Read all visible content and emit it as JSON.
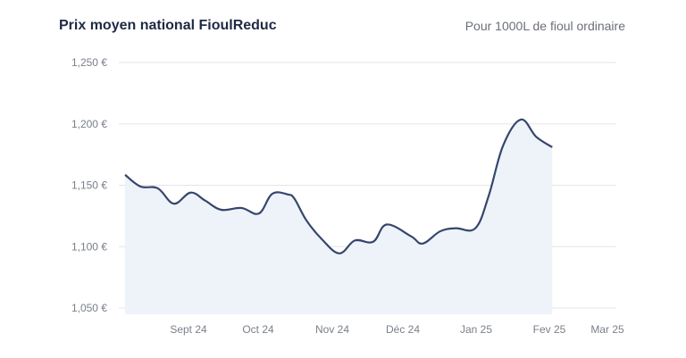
{
  "chart_data": {
    "type": "area",
    "title": "Prix moyen national FioulReduc",
    "subtitle": "Pour 1000L de fioul ordinaire",
    "xlabel": "",
    "ylabel": "",
    "ylim": [
      1050,
      1250
    ],
    "y_ticks": [
      "1,050 €",
      "1,100 €",
      "1,150 €",
      "1,200 €",
      "1,250 €"
    ],
    "y_tick_values": [
      1050,
      1100,
      1150,
      1200,
      1250
    ],
    "x_ticks": [
      "Sept 24",
      "Oct 24",
      "Nov 24",
      "Déc 24",
      "Jan 25",
      "Fev 25",
      "Mar 25"
    ],
    "x_note": "x values are month index: 0 = Aug 24, 1 = Sept 24 ... 7 = Mar 25",
    "grid": true,
    "colors": {
      "line": "#36466b",
      "fill": "#eef3fa",
      "grid": "#e3e5e8"
    },
    "series": [
      {
        "name": "Prix moyen",
        "x": [
          0.09,
          0.31,
          0.56,
          0.79,
          1.03,
          1.24,
          1.47,
          1.76,
          2.01,
          2.19,
          2.4,
          2.49,
          2.65,
          2.86,
          3.1,
          3.32,
          3.58,
          3.77,
          4.11,
          4.27,
          4.51,
          4.72,
          4.99,
          5.17,
          5.37,
          5.61,
          5.82,
          6.05
        ],
        "values": [
          1158.5,
          1149,
          1147.5,
          1135,
          1144,
          1137.5,
          1130,
          1131.5,
          1127,
          1143,
          1142.5,
          1139,
          1121.5,
          1106,
          1094.5,
          1105,
          1104,
          1118,
          1108.5,
          1102.5,
          1112.5,
          1115,
          1115,
          1141,
          1182.5,
          1203.5,
          1189.5,
          1181
        ]
      }
    ]
  }
}
